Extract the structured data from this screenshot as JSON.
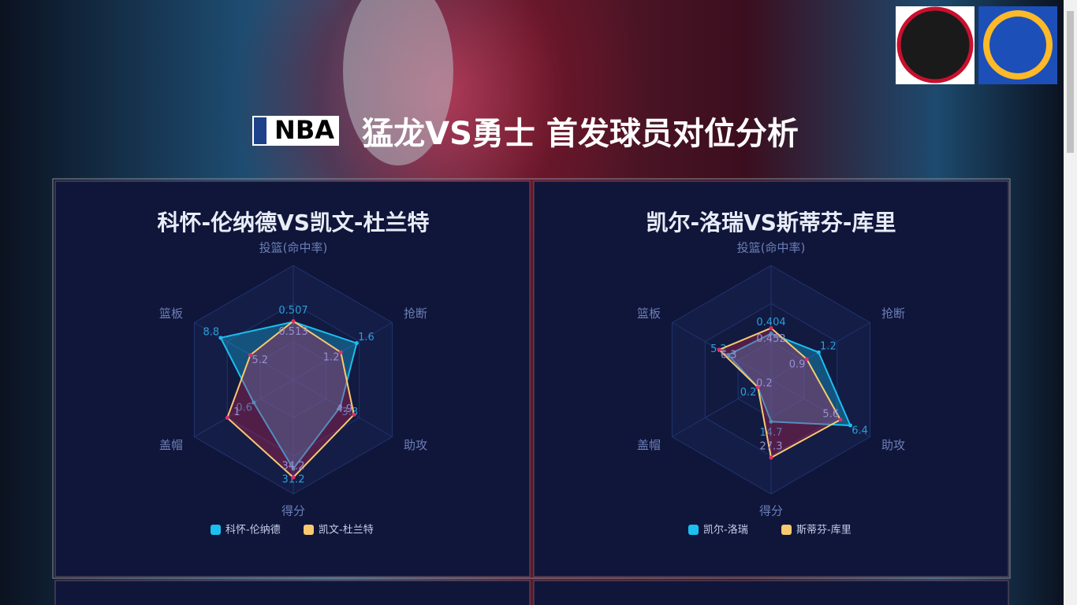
{
  "header": {
    "brand": "NBA",
    "title": "猛龙VS勇士 首发球员对位分析"
  },
  "chart_data": [
    {
      "type": "radar",
      "title": "科怀-伦纳德VS凯文-杜兰特",
      "indicators": [
        {
          "name": "投篮(命中率)",
          "max": 1
        },
        {
          "name": "抢断",
          "max": 2.5
        },
        {
          "name": "助攻",
          "max": 8
        },
        {
          "name": "得分",
          "max": 40
        },
        {
          "name": "盖帽",
          "max": 1.5
        },
        {
          "name": "篮板",
          "max": 12
        }
      ],
      "series": [
        {
          "name": "科怀-伦纳德",
          "color": "#19c0f0",
          "values": [
            0.507,
            1.6,
            3.8,
            31.2,
            0.6,
            8.8
          ]
        },
        {
          "name": "凯文-杜兰特",
          "color": "#f9c96e",
          "values": [
            0.513,
            1.2,
            4.9,
            34.2,
            1,
            5.2
          ]
        }
      ]
    },
    {
      "type": "radar",
      "title": "凯尔-洛瑞VS斯蒂芬-库里",
      "indicators": [
        {
          "name": "投篮(命中率)",
          "max": 1
        },
        {
          "name": "抢断",
          "max": 2.5
        },
        {
          "name": "助攻",
          "max": 8
        },
        {
          "name": "得分",
          "max": 40
        },
        {
          "name": "盖帽",
          "max": 1.5
        },
        {
          "name": "篮板",
          "max": 12
        }
      ],
      "series": [
        {
          "name": "凯尔-洛瑞",
          "color": "#19c0f0",
          "values": [
            0.404,
            1.2,
            6.4,
            14.7,
            0.2,
            5.2
          ]
        },
        {
          "name": "斯蒂芬-库里",
          "color": "#f9c96e",
          "values": [
            0.452,
            0.9,
            5.6,
            27.3,
            0.2,
            6.3
          ]
        }
      ]
    }
  ]
}
